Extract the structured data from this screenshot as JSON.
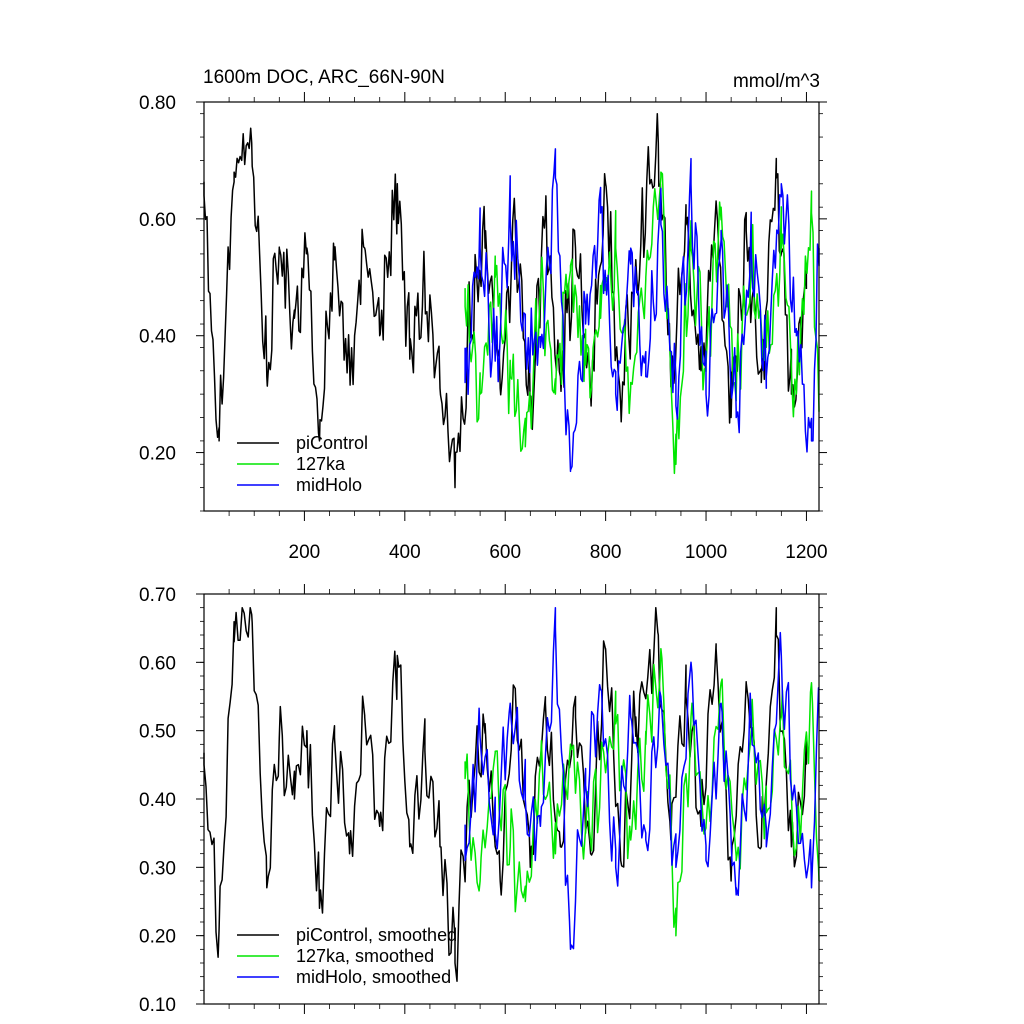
{
  "chart_data": [
    {
      "type": "line",
      "title": "1600m DOC, ARC_66N-90N",
      "units": "mmol/m^3",
      "xlim": [
        0,
        1225
      ],
      "ylim": [
        0.1,
        0.8
      ],
      "yticks": [
        0.2,
        0.4,
        0.6,
        0.8
      ],
      "ytick_labels": [
        "0.20",
        "0.40",
        "0.60",
        "0.80"
      ],
      "xticks": [
        200,
        400,
        600,
        800,
        1000,
        1200
      ],
      "xtick_labels": [
        "200",
        "400",
        "600",
        "800",
        "1000",
        "1200"
      ],
      "legend_position": "bottom-left",
      "series": [
        {
          "name": "piControl",
          "color": "#000000",
          "x": [
            0,
            30,
            60,
            95,
            125,
            150,
            180,
            205,
            230,
            260,
            290,
            320,
            350,
            385,
            410,
            440,
            470,
            500,
            530,
            560,
            590,
            620,
            650,
            680,
            710,
            740,
            770,
            800,
            830,
            860,
            905,
            930,
            960,
            990,
            1020,
            1050,
            1080,
            1110,
            1140,
            1170,
            1200
          ],
          "values": [
            0.64,
            0.22,
            0.68,
            0.73,
            0.33,
            0.55,
            0.43,
            0.55,
            0.22,
            0.53,
            0.35,
            0.55,
            0.4,
            0.66,
            0.36,
            0.48,
            0.31,
            0.14,
            0.43,
            0.55,
            0.31,
            0.59,
            0.27,
            0.61,
            0.33,
            0.55,
            0.3,
            0.66,
            0.28,
            0.53,
            0.73,
            0.33,
            0.59,
            0.34,
            0.63,
            0.26,
            0.58,
            0.32,
            0.67,
            0.3,
            0.48
          ]
        },
        {
          "name": "127ka",
          "color": "#00e600",
          "x": [
            520,
            550,
            580,
            610,
            640,
            670,
            700,
            730,
            760,
            790,
            820,
            850,
            880,
            910,
            940,
            970,
            1000,
            1030,
            1060,
            1090,
            1120,
            1150,
            1180,
            1210,
            1225
          ],
          "values": [
            0.45,
            0.3,
            0.5,
            0.33,
            0.21,
            0.48,
            0.3,
            0.52,
            0.35,
            0.43,
            0.55,
            0.32,
            0.5,
            0.68,
            0.18,
            0.55,
            0.35,
            0.62,
            0.3,
            0.52,
            0.38,
            0.55,
            0.3,
            0.61,
            0.27
          ]
        },
        {
          "name": "midHolo",
          "color": "#0000ff",
          "x": [
            520,
            550,
            580,
            610,
            640,
            670,
            700,
            730,
            760,
            790,
            820,
            850,
            880,
            910,
            940,
            970,
            1000,
            1030,
            1060,
            1090,
            1120,
            1150,
            1180,
            1210,
            1225
          ],
          "values": [
            0.32,
            0.55,
            0.36,
            0.6,
            0.4,
            0.38,
            0.67,
            0.17,
            0.42,
            0.61,
            0.3,
            0.55,
            0.33,
            0.59,
            0.28,
            0.66,
            0.3,
            0.58,
            0.26,
            0.55,
            0.33,
            0.66,
            0.4,
            0.22,
            0.55
          ]
        }
      ]
    },
    {
      "type": "line",
      "xlim": [
        0,
        1225
      ],
      "ylim": [
        0.1,
        0.7
      ],
      "yticks": [
        0.1,
        0.2,
        0.3,
        0.4,
        0.5,
        0.6,
        0.7
      ],
      "ytick_labels": [
        "0.10",
        "0.20",
        "0.30",
        "0.40",
        "0.50",
        "0.60",
        "0.70"
      ],
      "xticks": [
        200,
        400,
        600,
        800,
        1000,
        1200
      ],
      "legend_position": "bottom-left",
      "series": [
        {
          "name": "piControl, smoothed",
          "color": "#000000",
          "x": [
            0,
            30,
            60,
            95,
            125,
            150,
            180,
            205,
            230,
            260,
            290,
            320,
            350,
            385,
            410,
            440,
            470,
            500,
            530,
            560,
            590,
            620,
            650,
            680,
            710,
            740,
            770,
            800,
            830,
            860,
            905,
            930,
            960,
            990,
            1020,
            1050,
            1080,
            1110,
            1140,
            1170,
            1200
          ],
          "values": [
            0.45,
            0.21,
            0.63,
            0.67,
            0.27,
            0.49,
            0.4,
            0.5,
            0.24,
            0.49,
            0.32,
            0.52,
            0.36,
            0.61,
            0.33,
            0.47,
            0.33,
            0.16,
            0.4,
            0.51,
            0.28,
            0.56,
            0.3,
            0.54,
            0.33,
            0.52,
            0.32,
            0.62,
            0.31,
            0.52,
            0.64,
            0.34,
            0.55,
            0.36,
            0.62,
            0.28,
            0.57,
            0.33,
            0.64,
            0.33,
            0.45
          ]
        },
        {
          "name": "127ka, smoothed",
          "color": "#00e600",
          "x": [
            520,
            550,
            580,
            610,
            640,
            670,
            700,
            730,
            760,
            790,
            820,
            850,
            880,
            910,
            940,
            970,
            1000,
            1030,
            1060,
            1090,
            1120,
            1150,
            1180,
            1210,
            1225
          ],
          "values": [
            0.43,
            0.28,
            0.47,
            0.33,
            0.25,
            0.45,
            0.32,
            0.48,
            0.35,
            0.43,
            0.51,
            0.34,
            0.48,
            0.62,
            0.2,
            0.52,
            0.36,
            0.57,
            0.31,
            0.5,
            0.38,
            0.52,
            0.33,
            0.57,
            0.28
          ]
        },
        {
          "name": "midHolo, smoothed",
          "color": "#0000ff",
          "x": [
            520,
            550,
            580,
            610,
            640,
            670,
            700,
            730,
            760,
            790,
            820,
            850,
            880,
            910,
            940,
            970,
            1000,
            1030,
            1060,
            1090,
            1120,
            1150,
            1180,
            1210,
            1225
          ],
          "values": [
            0.31,
            0.49,
            0.35,
            0.54,
            0.4,
            0.36,
            0.65,
            0.18,
            0.42,
            0.56,
            0.3,
            0.52,
            0.34,
            0.55,
            0.3,
            0.6,
            0.31,
            0.54,
            0.27,
            0.52,
            0.33,
            0.61,
            0.39,
            0.27,
            0.56
          ]
        }
      ]
    }
  ]
}
